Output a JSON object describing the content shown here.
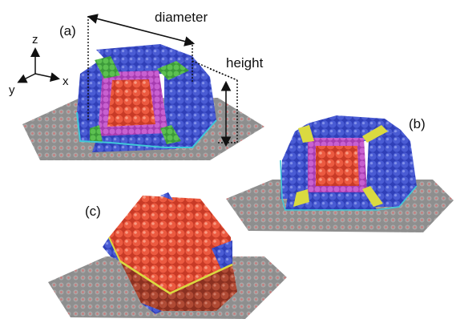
{
  "panels": {
    "a": {
      "label": "(a)"
    },
    "b": {
      "label": "(b)"
    },
    "c": {
      "label": "(c)"
    }
  },
  "dimensions": {
    "diameter_label": "diameter",
    "height_label": "height"
  },
  "axes": {
    "z": "z",
    "y": "y",
    "x": "x"
  },
  "colors": {
    "blue_facet": "#3a4fc8",
    "red_facet": "#e0503a",
    "green_edge": "#4fb04a",
    "magenta_edge": "#c054c8",
    "yellow_edge": "#d8d848",
    "cyan_edge": "#40c8d8",
    "substrate_grey": "#8a8a8a",
    "substrate_dot": "#c87070"
  }
}
